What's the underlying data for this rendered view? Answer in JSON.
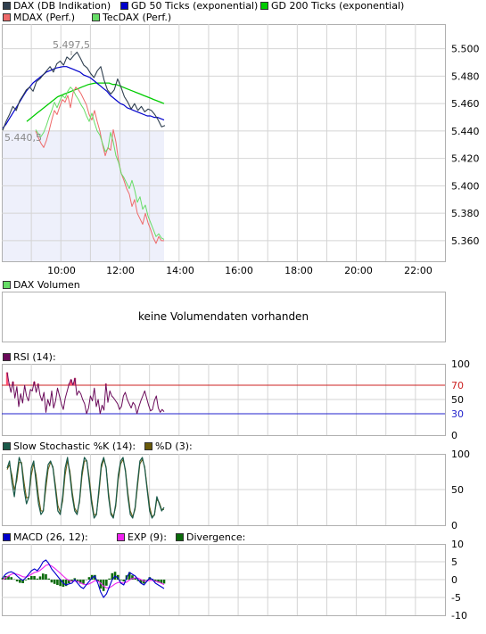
{
  "legends": {
    "main": [
      {
        "label": "DAX (DB Indikation)",
        "color": "#2f3f4f"
      },
      {
        "label": "GD 50 Ticks (exponential)",
        "color": "#0000cc"
      },
      {
        "label": "GD 200 Ticks (exponential)",
        "color": "#00cc00"
      },
      {
        "label": "MDAX (Perf.)",
        "color": "#ee6a6a"
      },
      {
        "label": "TecDAX (Perf.)",
        "color": "#66dd66"
      }
    ],
    "volume": [
      {
        "label": "DAX Volumen",
        "color": "#66dd66"
      }
    ],
    "rsi": [
      {
        "label": "RSI (14):",
        "color": "#6a0a5a"
      }
    ],
    "stoch": [
      {
        "label": "Slow Stochastic %K (14):",
        "color": "#1a5a4a"
      },
      {
        "label": "%D (3):",
        "color": "#6a5a0a"
      }
    ],
    "macd": [
      {
        "label": "MACD (26, 12):",
        "color": "#0000cc"
      },
      {
        "label": "EXP (9):",
        "color": "#ee22ee"
      },
      {
        "label": "Divergence:",
        "color": "#0a6a0a"
      }
    ]
  },
  "volume_message": "keine Volumendaten vorhanden",
  "chart_data": [
    {
      "type": "line",
      "title": "DAX (DB Indikation)",
      "x_ticks": [
        "10:00",
        "12:00",
        "14:00",
        "16:00",
        "18:00",
        "20:00",
        "22:00"
      ],
      "y_ticks": [
        "5.500",
        "5.480",
        "5.460",
        "5.440",
        "5.420",
        "5.400",
        "5.380",
        "5.360"
      ],
      "ylim": [
        5345,
        5518
      ],
      "annotations": {
        "high": "5.497,5",
        "low": "5.440,5"
      },
      "series": [
        {
          "name": "DAX (DB Indikation)",
          "color": "#2f3f4f",
          "values": [
            5440.5,
            5447,
            5452,
            5458,
            5455,
            5462,
            5466,
            5470,
            5472,
            5469,
            5476,
            5478,
            5481,
            5484,
            5487,
            5483,
            5489,
            5491,
            5488,
            5494,
            5492,
            5495,
            5497.5,
            5493,
            5488,
            5486,
            5482,
            5479,
            5484,
            5487,
            5477,
            5470,
            5467,
            5470,
            5478,
            5472,
            5465,
            5461,
            5456,
            5460,
            5455,
            5458,
            5454,
            5456,
            5455,
            5452,
            5448,
            5443,
            5444
          ]
        },
        {
          "name": "GD 50 Ticks (exponential)",
          "color": "#0000cc",
          "values": [
            5442,
            5445,
            5449,
            5453,
            5457,
            5461,
            5465,
            5469,
            5472,
            5475,
            5477,
            5479,
            5481,
            5483,
            5484,
            5485,
            5486,
            5486.5,
            5487,
            5487,
            5486,
            5485,
            5484,
            5483,
            5481,
            5480,
            5479,
            5477,
            5475,
            5473,
            5471,
            5469,
            5466,
            5464,
            5462,
            5460,
            5459,
            5457,
            5456,
            5455,
            5454,
            5453,
            5452,
            5451,
            5451,
            5450,
            5450,
            5449,
            5448
          ]
        },
        {
          "name": "GD 200 Ticks (exponential)",
          "color": "#00cc00",
          "values": [
            5447,
            5449,
            5451,
            5453,
            5455,
            5457,
            5459,
            5461,
            5463,
            5465,
            5466,
            5467,
            5468,
            5469,
            5470,
            5471,
            5472,
            5473,
            5474,
            5474.5,
            5475,
            5475,
            5475,
            5475,
            5475,
            5474,
            5474,
            5473,
            5472,
            5471,
            5470,
            5469,
            5468,
            5467,
            5466,
            5465,
            5464,
            5463,
            5462,
            5461,
            5460
          ]
        },
        {
          "name": "MDAX (Perf.)",
          "color": "#ee6a6a",
          "values": [
            5440,
            5435,
            5431,
            5428,
            5433,
            5440,
            5448,
            5455,
            5452,
            5458,
            5463,
            5461,
            5466,
            5457,
            5468,
            5472,
            5470,
            5467,
            5463,
            5459,
            5452,
            5448,
            5455,
            5447,
            5440,
            5430,
            5422,
            5428,
            5426,
            5441,
            5432,
            5418,
            5409,
            5404,
            5398,
            5394,
            5385,
            5390,
            5380,
            5376,
            5372,
            5380,
            5373,
            5368,
            5362,
            5358,
            5363,
            5360,
            5360
          ]
        },
        {
          "name": "TecDAX (Perf.)",
          "color": "#66dd66",
          "values": [
            5441,
            5438,
            5436,
            5439,
            5444,
            5450,
            5455,
            5461,
            5457,
            5462,
            5466,
            5464,
            5469,
            5472,
            5470,
            5466,
            5463,
            5459,
            5456,
            5451,
            5447,
            5453,
            5446,
            5440,
            5437,
            5431,
            5425,
            5427,
            5439,
            5432,
            5422,
            5417,
            5409,
            5406,
            5402,
            5398,
            5404,
            5397,
            5388,
            5392,
            5383,
            5386,
            5378,
            5373,
            5368,
            5363,
            5365,
            5362,
            5361
          ]
        }
      ]
    },
    {
      "type": "line",
      "title": "RSI (14):",
      "ylim": [
        0,
        100
      ],
      "y_ticks": [
        "100",
        "70",
        "50",
        "30",
        "0"
      ],
      "thresholds": [
        70,
        30
      ],
      "series": [
        {
          "name": "RSI (14):",
          "color": "#6a0a5a",
          "values": [
            88,
            72,
            60,
            75,
            52,
            68,
            40,
            58,
            45,
            70,
            55,
            48,
            64,
            62,
            75,
            60,
            72,
            56,
            48,
            60,
            32,
            50,
            41,
            62,
            38,
            48,
            66,
            55,
            44,
            36,
            52,
            62,
            72,
            78,
            70,
            80,
            56,
            62,
            58,
            50,
            44,
            30,
            38,
            55,
            48,
            66,
            40,
            50,
            30,
            42,
            35,
            72,
            46,
            62,
            55,
            52,
            48,
            44,
            36,
            40,
            55,
            60,
            50,
            44,
            38,
            46,
            42,
            30,
            40,
            48,
            55,
            62,
            52,
            42,
            34,
            36,
            48,
            55,
            38,
            32,
            36,
            33
          ]
        }
      ]
    },
    {
      "type": "line",
      "title": "Slow Stochastic %K (14):",
      "ylim": [
        0,
        100
      ],
      "y_ticks": [
        "100",
        "50",
        "0"
      ],
      "series": [
        {
          "name": "Slow Stochastic %K (14):",
          "color": "#1a5a4a",
          "values": [
            80,
            90,
            60,
            40,
            70,
            95,
            85,
            50,
            30,
            40,
            80,
            90,
            60,
            30,
            15,
            20,
            60,
            85,
            90,
            80,
            50,
            20,
            15,
            40,
            80,
            95,
            70,
            40,
            20,
            15,
            35,
            75,
            95,
            90,
            60,
            30,
            10,
            15,
            50,
            85,
            95,
            80,
            40,
            15,
            10,
            30,
            70,
            90,
            95,
            75,
            40,
            15,
            10,
            25,
            60,
            90,
            95,
            80,
            50,
            20,
            10,
            15,
            40,
            30,
            20,
            25
          ]
        },
        {
          "name": "%D (3):",
          "color": "#6a5a0a",
          "values": [
            78,
            85,
            70,
            50,
            62,
            88,
            88,
            60,
            38,
            40,
            70,
            86,
            70,
            40,
            20,
            20,
            50,
            78,
            88,
            82,
            56,
            28,
            18,
            34,
            70,
            90,
            76,
            46,
            24,
            18,
            32,
            68,
            90,
            90,
            66,
            36,
            14,
            16,
            44,
            80,
            92,
            82,
            46,
            18,
            12,
            26,
            64,
            86,
            92,
            78,
            46,
            20,
            12,
            22,
            54,
            86,
            92,
            82,
            54,
            26,
            12,
            14,
            36,
            32,
            22,
            22
          ]
        }
      ]
    },
    {
      "type": "line",
      "title": "MACD (26, 12):",
      "ylim": [
        -10,
        10
      ],
      "y_ticks": [
        "10",
        "5",
        "0",
        "-5",
        "-10"
      ],
      "series": [
        {
          "name": "MACD (26, 12):",
          "color": "#0000cc",
          "values": [
            0.5,
            1.5,
            2.0,
            2.2,
            1.8,
            1.0,
            0.3,
            -0.2,
            0.5,
            1.5,
            2.5,
            3.0,
            2.5,
            3.5,
            5.0,
            5.5,
            4.5,
            3.0,
            2.0,
            1.0,
            0.0,
            -1.0,
            -1.5,
            -1.2,
            -1.0,
            0.0,
            -1.0,
            -2.0,
            -2.5,
            -1.5,
            -0.5,
            0.5,
            1.0,
            -1.0,
            -3.5,
            -5.0,
            -4.0,
            -2.0,
            0.0,
            1.0,
            0.5,
            -1.0,
            -1.5,
            0.5,
            2.0,
            1.5,
            1.0,
            0.0,
            -1.0,
            -1.5,
            -0.5,
            0.5,
            0.0,
            -1.0,
            -1.5,
            -2.0,
            -2.5
          ]
        },
        {
          "name": "EXP (9):",
          "color": "#ee22ee",
          "values": [
            0.0,
            0.5,
            1.0,
            1.5,
            1.7,
            1.5,
            1.2,
            0.8,
            0.7,
            1.0,
            1.5,
            2.0,
            2.2,
            2.6,
            3.3,
            4.0,
            4.2,
            3.8,
            3.2,
            2.5,
            1.8,
            1.0,
            0.3,
            -0.2,
            -0.5,
            -0.4,
            -0.5,
            -0.9,
            -1.3,
            -1.4,
            -1.2,
            -0.8,
            -0.3,
            -0.4,
            -1.0,
            -1.8,
            -2.3,
            -2.3,
            -1.8,
            -1.2,
            -0.8,
            -0.8,
            -1.0,
            -0.7,
            -0.1,
            0.3,
            0.5,
            0.4,
            0.0,
            -0.4,
            -0.4,
            -0.2,
            -0.2,
            -0.4,
            -0.7,
            -1.0,
            -1.4
          ]
        },
        {
          "name": "Divergence:",
          "color": "#0a6a0a",
          "values": [
            0.5,
            1.0,
            1.0,
            0.7,
            0.1,
            -0.5,
            -0.9,
            -1.0,
            -0.2,
            0.5,
            1.0,
            1.0,
            0.3,
            0.9,
            1.7,
            1.5,
            0.3,
            -0.8,
            -1.2,
            -1.5,
            -1.8,
            -2.0,
            -1.8,
            -1.0,
            -0.5,
            0.4,
            -0.5,
            -1.1,
            -1.2,
            -0.1,
            0.7,
            1.3,
            1.3,
            -0.6,
            -2.5,
            -3.2,
            -1.7,
            0.3,
            1.8,
            2.2,
            1.3,
            -0.2,
            -0.5,
            1.2,
            2.1,
            1.2,
            0.5,
            -0.4,
            -1.0,
            -1.1,
            -0.1,
            0.7,
            0.2,
            -0.6,
            -0.8,
            -1.0,
            -1.1
          ]
        }
      ]
    }
  ]
}
